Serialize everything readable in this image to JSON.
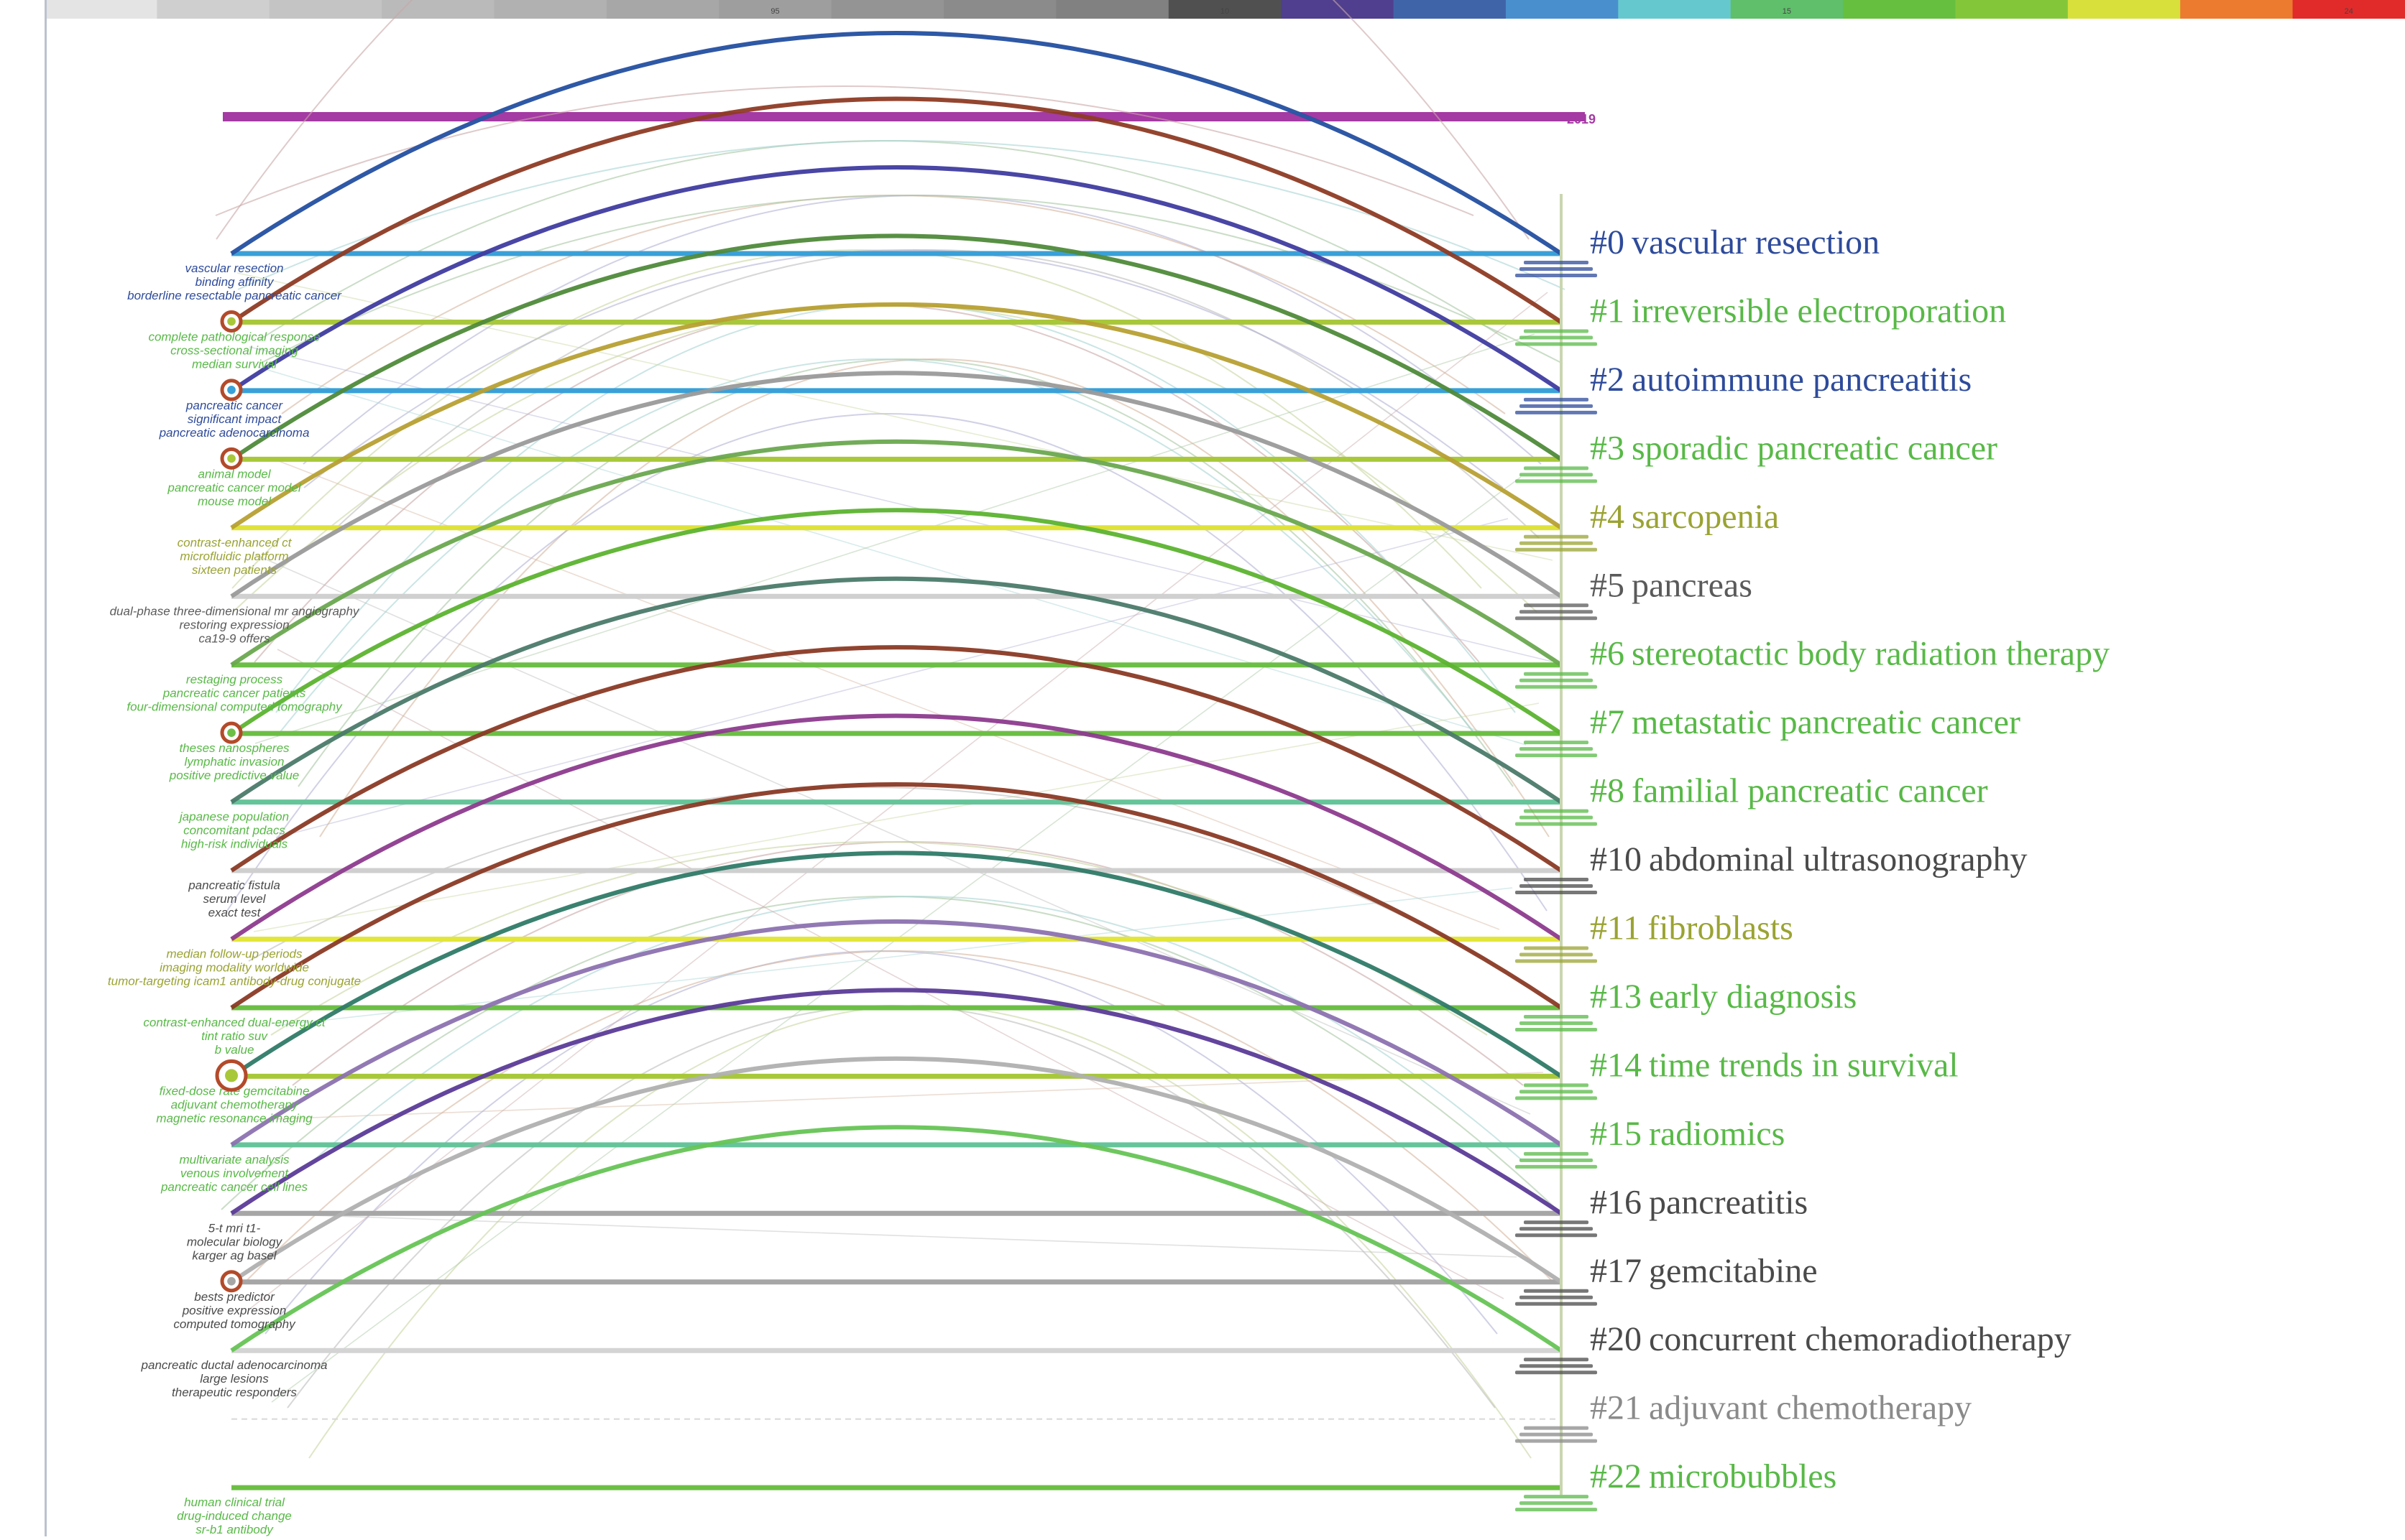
{
  "timeline": {
    "colors": [
      "#e4e4e4",
      "#cfcfcf",
      "#c4c4c4",
      "#bababa",
      "#b1b1b1",
      "#a7a7a7",
      "#9e9e9e",
      "#949494",
      "#8b8b8b",
      "#818181",
      "#505050",
      "#4f3f8e",
      "#4064a8",
      "#4a8fcd",
      "#66c8cf",
      "#5fbf6a",
      "#66bf3f",
      "#84c63a",
      "#d8e03b",
      "#ec7b2f",
      "#e12b2b"
    ],
    "tick_labels": [
      "95",
      "10",
      "15",
      "24"
    ],
    "year_label": "2019",
    "year_bar_color": "#a43aa3"
  },
  "clusters": [
    {
      "id": "#0",
      "name": "vascular resection",
      "color": "#2e4b9b",
      "line_color": "#3aa0d8",
      "arc_color": "#2e4b9b",
      "keywords": [
        "vascular resection",
        "binding affinity",
        "borderline resectable pancreatic cancer"
      ],
      "kw_color": "#2e4b9b",
      "marker": false
    },
    {
      "id": "#1",
      "name": "irreversible electroporation",
      "color": "#58b947",
      "line_color": "#a8c83a",
      "arc_color": "#8e3b24",
      "keywords": [
        "complete pathological response",
        "cross-sectional imaging",
        "median survival"
      ],
      "kw_color": "#58b947",
      "marker": true
    },
    {
      "id": "#2",
      "name": "autoimmune pancreatitis",
      "color": "#2e4b9b",
      "line_color": "#3aa0d8",
      "arc_color": "#3f3ca0",
      "keywords": [
        "pancreatic cancer",
        "significant impact",
        "pancreatic adenocarcinoma"
      ],
      "kw_color": "#2e4b9b",
      "marker": true
    },
    {
      "id": "#3",
      "name": "sporadic pancreatic cancer",
      "color": "#58b947",
      "line_color": "#a8c83a",
      "arc_color": "#4f8a3a",
      "keywords": [
        "animal model",
        "pancreatic cancer model",
        "mouse model"
      ],
      "kw_color": "#58b947",
      "marker": true
    },
    {
      "id": "#4",
      "name": "sarcopenia",
      "color": "#9aa332",
      "line_color": "#dfe23a",
      "arc_color": "#b7a033",
      "keywords": [
        "contrast-enhanced ct",
        "microfluidic platform",
        "sixteen patients"
      ],
      "kw_color": "#9aa332",
      "marker": false
    },
    {
      "id": "#5",
      "name": "pancreas",
      "color": "#5a5a5a",
      "line_color": "#d0d0d0",
      "arc_color": "#9a9a9a",
      "keywords": [
        "dual-phase three-dimensional mr angiography",
        "restoring expression",
        "ca19-9 offers"
      ],
      "kw_color": "#5a5a5a",
      "marker": false
    },
    {
      "id": "#6",
      "name": "stereotactic body radiation therapy",
      "color": "#58b947",
      "line_color": "#6cbf45",
      "arc_color": "#6aa84f",
      "keywords": [
        "restaging process",
        "pancreatic cancer patients",
        "four-dimensional computed tomography"
      ],
      "kw_color": "#58b947",
      "marker": false
    },
    {
      "id": "#7",
      "name": "metastatic pancreatic cancer",
      "color": "#58b947",
      "line_color": "#6cbf45",
      "arc_color": "#5cb32f",
      "keywords": [
        "theses nanospheres",
        "lymphatic invasion",
        "positive predictive value"
      ],
      "kw_color": "#58b947",
      "marker": true
    },
    {
      "id": "#8",
      "name": "familial pancreatic cancer",
      "color": "#58b947",
      "line_color": "#66c49a",
      "arc_color": "#4b7a6a",
      "keywords": [
        "japanese population",
        "concomitant pdacs",
        "high-risk individuals"
      ],
      "kw_color": "#58b947",
      "marker": false
    },
    {
      "id": "#10",
      "name": "abdominal ultrasonography",
      "color": "#4a4a4a",
      "line_color": "#cfcfcf",
      "arc_color": "#8a3a25",
      "keywords": [
        "pancreatic fistula",
        "serum level",
        "exact test"
      ],
      "kw_color": "#4a4a4a",
      "marker": false
    },
    {
      "id": "#11",
      "name": "fibroblasts",
      "color": "#9aa332",
      "line_color": "#e3e63a",
      "arc_color": "#8d3b8e",
      "keywords": [
        "median follow-up periods",
        "imaging modality worldwide",
        "tumor-targeting icam1 antibody-drug conjugate"
      ],
      "kw_color": "#9aa332",
      "marker": false
    },
    {
      "id": "#13",
      "name": "early diagnosis",
      "color": "#58b947",
      "line_color": "#6cbf45",
      "arc_color": "#8a3a25",
      "keywords": [
        "contrast-enhanced dual-energy ct",
        "tint ratio suv",
        "b value"
      ],
      "kw_color": "#58b947",
      "marker": false
    },
    {
      "id": "#14",
      "name": "time trends in survival",
      "color": "#58b947",
      "line_color": "#a8c83a",
      "arc_color": "#2f7a68",
      "keywords": [
        "fixed-dose rate gemcitabine",
        "adjuvant chemotherapy",
        "magnetic resonance imaging"
      ],
      "kw_color": "#58b947",
      "marker": true
    },
    {
      "id": "#15",
      "name": "radiomics",
      "color": "#58b947",
      "line_color": "#66c49a",
      "arc_color": "#8c72b0",
      "keywords": [
        "multivariate analysis",
        "venous involvement",
        "pancreatic cancer cell lines"
      ],
      "kw_color": "#58b947",
      "marker": false
    },
    {
      "id": "#16",
      "name": "pancreatitis",
      "color": "#4a4a4a",
      "line_color": "#a6a6a6",
      "arc_color": "#5b3b98",
      "keywords": [
        "5-t mri t1-",
        "molecular biology",
        "karger ag basel"
      ],
      "kw_color": "#4a4a4a",
      "marker": false
    },
    {
      "id": "#17",
      "name": "gemcitabine",
      "color": "#4a4a4a",
      "line_color": "#a6a6a6",
      "arc_color": "#b0b0b0",
      "keywords": [
        "bests predictor",
        "positive expression",
        "computed tomography"
      ],
      "kw_color": "#4a4a4a",
      "marker": true
    },
    {
      "id": "#20",
      "name": "concurrent chemoradiotherapy",
      "color": "#4a4a4a",
      "line_color": "#d4d4d4",
      "arc_color": "#66c455",
      "keywords": [
        "pancreatic ductal adenocarcinoma",
        "large lesions",
        "therapeutic responders"
      ],
      "kw_color": "#4a4a4a",
      "marker": false
    },
    {
      "id": "#21",
      "name": "adjuvant chemotherapy",
      "color": "#8a8a8a",
      "line_color": "#d8d8d8",
      "arc_color": "",
      "keywords": [],
      "kw_color": "#8a8a8a",
      "marker": false,
      "dashed": true
    },
    {
      "id": "#22",
      "name": "microbubbles",
      "color": "#58b947",
      "line_color": "#6cbf45",
      "arc_color": "",
      "keywords": [
        "human clinical trial",
        "drug-induced change",
        "sr-b1 antibody"
      ],
      "kw_color": "#58b947",
      "marker": false
    }
  ]
}
